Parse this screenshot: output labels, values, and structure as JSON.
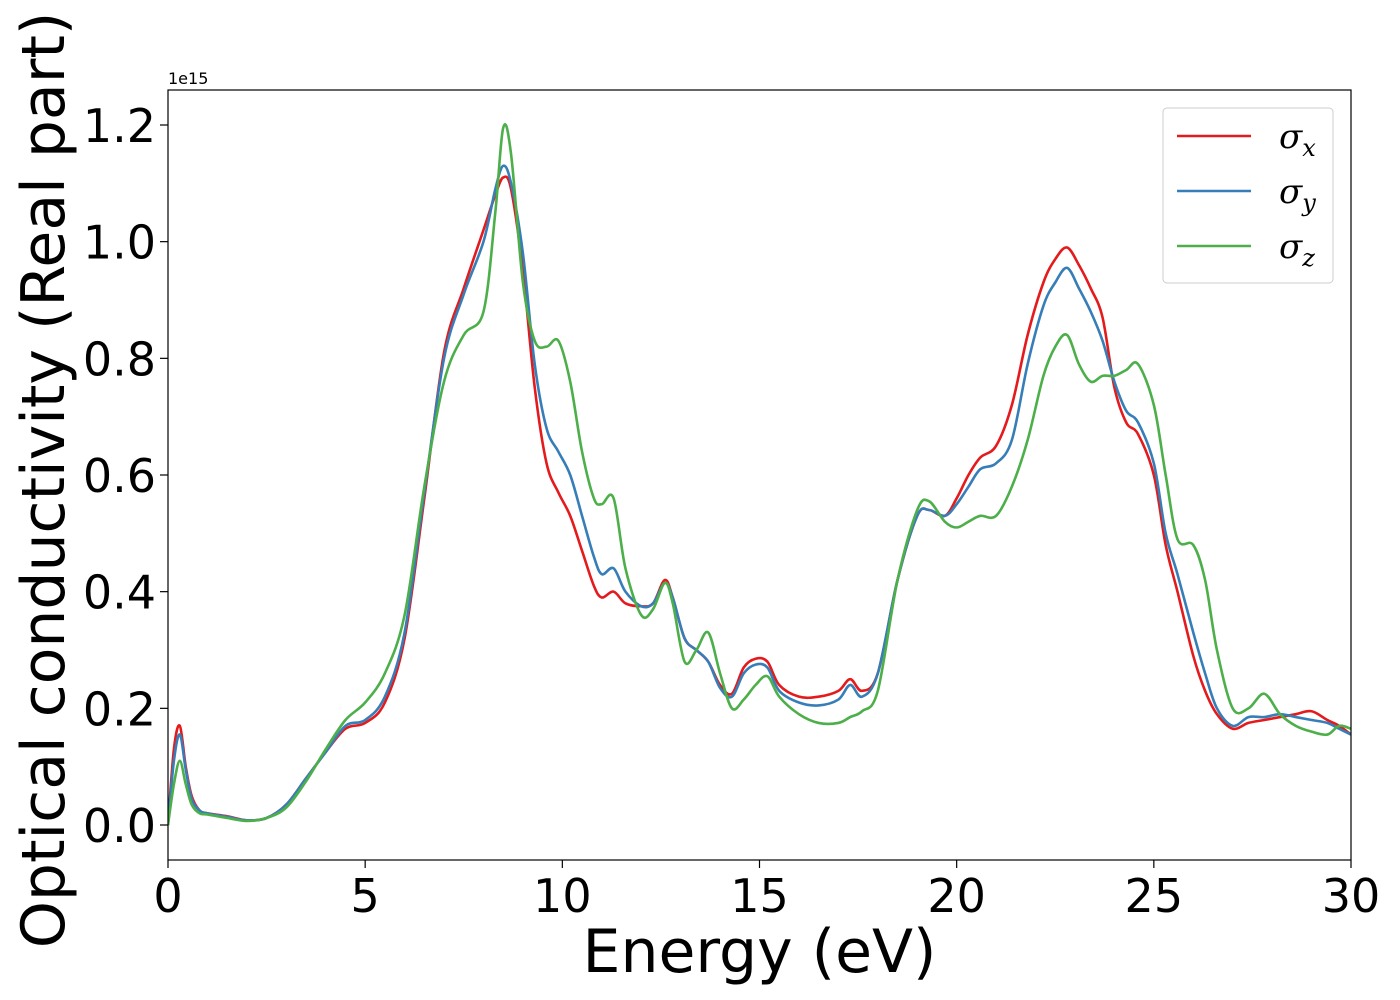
{
  "chart_data": {
    "type": "line",
    "title": "",
    "xlabel": "Energy (eV)",
    "ylabel": "Optical conductivity (Real part)",
    "y_offset_text": "1e15",
    "xlim": [
      0,
      30
    ],
    "ylim": [
      -0.06,
      1.26
    ],
    "x_ticks": [
      0,
      5,
      10,
      15,
      20,
      25,
      30
    ],
    "x_tick_labels": [
      "0",
      "5",
      "10",
      "15",
      "20",
      "25",
      "30"
    ],
    "y_ticks": [
      0.0,
      0.2,
      0.4,
      0.6,
      0.8,
      1.0,
      1.2
    ],
    "y_tick_labels": [
      "0.0",
      "0.2",
      "0.4",
      "0.6",
      "0.8",
      "1.0",
      "1.2"
    ],
    "grid": false,
    "legend_position": "top-right",
    "x": [
      0,
      0.15,
      0.3,
      0.45,
      0.6,
      0.8,
      1.0,
      1.5,
      2.0,
      2.5,
      3.0,
      3.5,
      4.0,
      4.5,
      5.0,
      5.5,
      6.0,
      6.5,
      7.0,
      7.5,
      8.0,
      8.3,
      8.5,
      8.7,
      9.0,
      9.3,
      9.6,
      9.9,
      10.2,
      10.5,
      10.8,
      11.0,
      11.3,
      11.6,
      12.0,
      12.3,
      12.6,
      12.8,
      13.1,
      13.4,
      13.7,
      14.0,
      14.3,
      14.6,
      14.9,
      15.2,
      15.5,
      16.0,
      16.5,
      17.0,
      17.3,
      17.6,
      18.0,
      18.5,
      19.0,
      19.3,
      19.7,
      20.0,
      20.3,
      20.6,
      21.0,
      21.4,
      21.8,
      22.2,
      22.5,
      22.8,
      23.1,
      23.4,
      23.7,
      24.0,
      24.3,
      24.6,
      25.0,
      25.3,
      25.6,
      26.0,
      26.3,
      26.6,
      27.0,
      27.4,
      27.8,
      28.2,
      28.6,
      29.0,
      29.4,
      29.7,
      30.0
    ],
    "series": [
      {
        "name": "σx",
        "color": "#e41a1c",
        "values": [
          0.0,
          0.13,
          0.17,
          0.1,
          0.05,
          0.025,
          0.02,
          0.015,
          0.008,
          0.012,
          0.035,
          0.08,
          0.125,
          0.165,
          0.175,
          0.21,
          0.32,
          0.56,
          0.81,
          0.92,
          1.02,
          1.08,
          1.11,
          1.09,
          0.95,
          0.75,
          0.62,
          0.57,
          0.53,
          0.47,
          0.41,
          0.39,
          0.4,
          0.38,
          0.375,
          0.38,
          0.42,
          0.39,
          0.32,
          0.3,
          0.28,
          0.24,
          0.225,
          0.27,
          0.285,
          0.28,
          0.24,
          0.22,
          0.22,
          0.23,
          0.25,
          0.23,
          0.26,
          0.42,
          0.53,
          0.54,
          0.53,
          0.56,
          0.6,
          0.63,
          0.65,
          0.72,
          0.84,
          0.93,
          0.97,
          0.99,
          0.96,
          0.92,
          0.87,
          0.75,
          0.69,
          0.67,
          0.6,
          0.48,
          0.4,
          0.29,
          0.23,
          0.19,
          0.165,
          0.175,
          0.18,
          0.185,
          0.19,
          0.195,
          0.18,
          0.17,
          0.155
        ]
      },
      {
        "name": "σy",
        "color": "#377eb8",
        "values": [
          0.0,
          0.11,
          0.155,
          0.095,
          0.045,
          0.025,
          0.02,
          0.014,
          0.008,
          0.012,
          0.035,
          0.08,
          0.125,
          0.17,
          0.18,
          0.22,
          0.33,
          0.57,
          0.8,
          0.91,
          1.0,
          1.09,
          1.13,
          1.1,
          0.98,
          0.79,
          0.68,
          0.64,
          0.6,
          0.53,
          0.46,
          0.43,
          0.44,
          0.4,
          0.375,
          0.38,
          0.415,
          0.39,
          0.32,
          0.3,
          0.28,
          0.235,
          0.22,
          0.26,
          0.275,
          0.27,
          0.23,
          0.21,
          0.205,
          0.215,
          0.24,
          0.22,
          0.26,
          0.42,
          0.53,
          0.54,
          0.53,
          0.55,
          0.58,
          0.61,
          0.62,
          0.66,
          0.79,
          0.89,
          0.93,
          0.955,
          0.92,
          0.88,
          0.83,
          0.76,
          0.71,
          0.69,
          0.62,
          0.5,
          0.43,
          0.33,
          0.26,
          0.2,
          0.17,
          0.185,
          0.185,
          0.19,
          0.185,
          0.18,
          0.175,
          0.165,
          0.155
        ]
      },
      {
        "name": "σz",
        "color": "#4daf4a",
        "values": [
          0.0,
          0.07,
          0.11,
          0.07,
          0.035,
          0.02,
          0.018,
          0.012,
          0.007,
          0.012,
          0.03,
          0.075,
          0.13,
          0.18,
          0.21,
          0.26,
          0.36,
          0.58,
          0.76,
          0.84,
          0.88,
          1.05,
          1.195,
          1.15,
          0.93,
          0.83,
          0.82,
          0.83,
          0.76,
          0.64,
          0.56,
          0.55,
          0.56,
          0.44,
          0.36,
          0.37,
          0.415,
          0.38,
          0.28,
          0.3,
          0.33,
          0.26,
          0.2,
          0.215,
          0.24,
          0.255,
          0.22,
          0.19,
          0.175,
          0.175,
          0.185,
          0.195,
          0.23,
          0.42,
          0.54,
          0.555,
          0.52,
          0.51,
          0.52,
          0.53,
          0.53,
          0.58,
          0.66,
          0.77,
          0.82,
          0.84,
          0.79,
          0.76,
          0.77,
          0.77,
          0.78,
          0.79,
          0.72,
          0.6,
          0.49,
          0.48,
          0.42,
          0.3,
          0.2,
          0.2,
          0.225,
          0.19,
          0.17,
          0.16,
          0.155,
          0.17,
          0.165
        ]
      }
    ],
    "legend": [
      {
        "symbol": "σ",
        "subscript": "x",
        "color": "#e41a1c"
      },
      {
        "symbol": "σ",
        "subscript": "y",
        "color": "#377eb8"
      },
      {
        "symbol": "σ",
        "subscript": "z",
        "color": "#4daf4a"
      }
    ]
  }
}
